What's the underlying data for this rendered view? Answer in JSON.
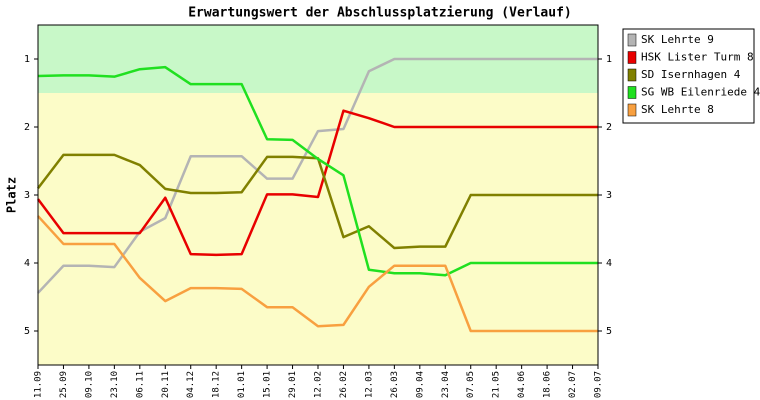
{
  "chart_data": {
    "type": "line",
    "title": "Erwartungswert der Abschlussplatzierung (Verlauf)",
    "y_label": "Platz",
    "categories": [
      "11.09",
      "25.09",
      "09.10",
      "23.10",
      "06.11",
      "20.11",
      "04.12",
      "18.12",
      "01.01",
      "15.01",
      "29.01",
      "12.02",
      "26.02",
      "12.03",
      "26.03",
      "09.04",
      "23.04",
      "07.05",
      "21.05",
      "04.06",
      "18.06",
      "02.07",
      "09.07"
    ],
    "ylim": [
      5.5,
      0.5
    ],
    "yticks": [
      1,
      2,
      3,
      4,
      5
    ],
    "bands": [
      {
        "from": 0.5,
        "to": 1.5,
        "color": "#c8f8c8"
      },
      {
        "from": 1.5,
        "to": 5.5,
        "color": "#fcfcc8"
      }
    ],
    "series": [
      {
        "name": "SK Lehrte 9",
        "color": "#b4b4b4",
        "values": [
          4.44,
          4.04,
          4.04,
          4.06,
          3.54,
          3.34,
          2.43,
          2.43,
          2.43,
          2.76,
          2.76,
          2.06,
          2.03,
          1.18,
          1,
          1,
          1,
          1,
          1,
          1,
          1,
          1,
          1
        ]
      },
      {
        "name": "HSK Lister Turm 8",
        "color": "#e80000",
        "values": [
          3.06,
          3.56,
          3.56,
          3.56,
          3.56,
          3.04,
          3.87,
          3.88,
          3.87,
          2.99,
          2.99,
          3.03,
          1.76,
          1.87,
          2,
          2,
          2,
          2,
          2,
          2,
          2,
          2,
          2
        ]
      },
      {
        "name": "SD Isernhagen 4",
        "color": "#808000",
        "values": [
          2.9,
          2.41,
          2.41,
          2.41,
          2.56,
          2.91,
          2.97,
          2.97,
          2.96,
          2.44,
          2.44,
          2.46,
          3.62,
          3.46,
          3.78,
          3.76,
          3.76,
          3,
          3,
          3,
          3,
          3,
          3
        ]
      },
      {
        "name": "SG WB Eilenriede 4",
        "color": "#20e020",
        "values": [
          1.25,
          1.24,
          1.24,
          1.26,
          1.15,
          1.12,
          1.37,
          1.37,
          1.37,
          2.18,
          2.19,
          2.47,
          2.71,
          4.1,
          4.15,
          4.15,
          4.18,
          4,
          4,
          4,
          4,
          4,
          4
        ]
      },
      {
        "name": "SK Lehrte 8",
        "color": "#f8a040",
        "values": [
          3.31,
          3.72,
          3.72,
          3.72,
          4.22,
          4.56,
          4.37,
          4.37,
          4.38,
          4.65,
          4.65,
          4.93,
          4.91,
          4.35,
          4.04,
          4.04,
          4.04,
          5,
          5,
          5,
          5,
          5,
          5
        ]
      }
    ]
  }
}
